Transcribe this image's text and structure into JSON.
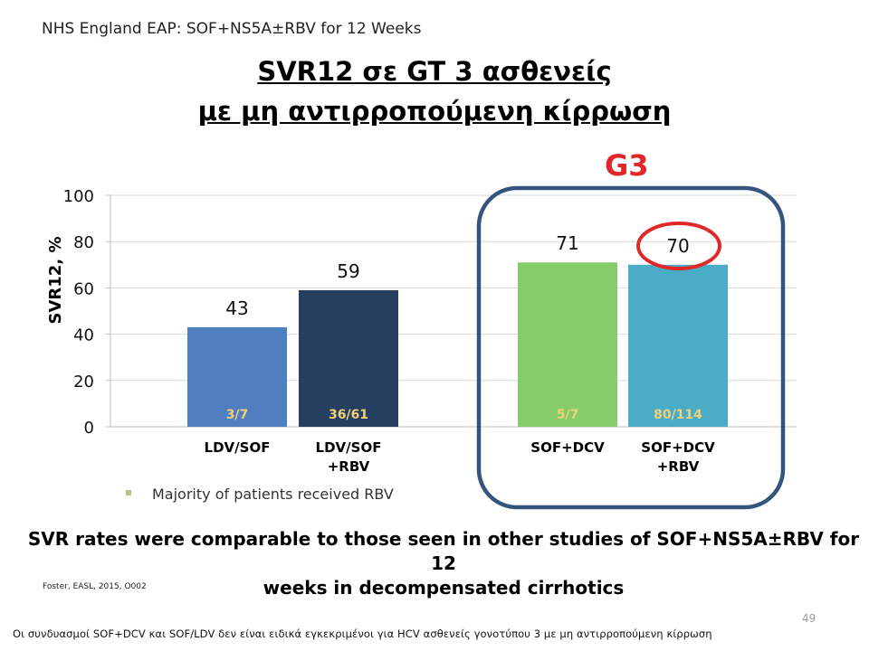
{
  "header": "NHS England EAP: SOF+NS5A±RBV for 12 Weeks",
  "title_line1": "SVR12 σε GT 3 ασθενείς",
  "title_line2": "με μη αντιρροπούμενη κίρρωση",
  "group_label": "G3",
  "colors": {
    "ldv_sof": "#4f7fbf",
    "ldv_sof_rbv": "#253f61",
    "sof_dcv": "#86cc6a",
    "sof_dcv_rbv": "#4aacc6",
    "highlight_box": "#34547e",
    "highlight_circle": "#e02828",
    "group_label": "#e02828"
  },
  "chart_data": {
    "type": "bar",
    "ylabel": "SVR12, %",
    "ylim": [
      0,
      100
    ],
    "yticks": [
      "0",
      "20",
      "40",
      "60",
      "80",
      "100"
    ],
    "grid": true,
    "bars": [
      {
        "category": [
          "LDV/SOF"
        ],
        "value": 43,
        "value_label": "43",
        "fraction": "3/7"
      },
      {
        "category": [
          "LDV/SOF",
          "+RBV"
        ],
        "value": 59,
        "value_label": "59",
        "fraction": "36/61"
      },
      {
        "category": [
          "SOF+DCV"
        ],
        "value": 71,
        "value_label": "71",
        "fraction": "5/7"
      },
      {
        "category": [
          "SOF+DCV",
          "+RBV"
        ],
        "value": 70,
        "value_label": "70",
        "fraction": "80/114"
      }
    ]
  },
  "bullet": "Majority of patients received RBV",
  "conclusion_line1": "SVR rates were comparable to those seen in other studies of SOF+NS5A±RBV for 12",
  "conclusion_line2": "weeks in decompensated cirrhotics",
  "citation": "Foster, EASL, 2015, O002",
  "page_number": "49",
  "footnote": "Οι συνδυασμοί SOF+DCV και SOF/LDV δεν είναι ειδικά εγκεκριμένοι για HCV ασθενείς γονοτύπου 3 με μη αντιρροπούμενη κίρρωση"
}
